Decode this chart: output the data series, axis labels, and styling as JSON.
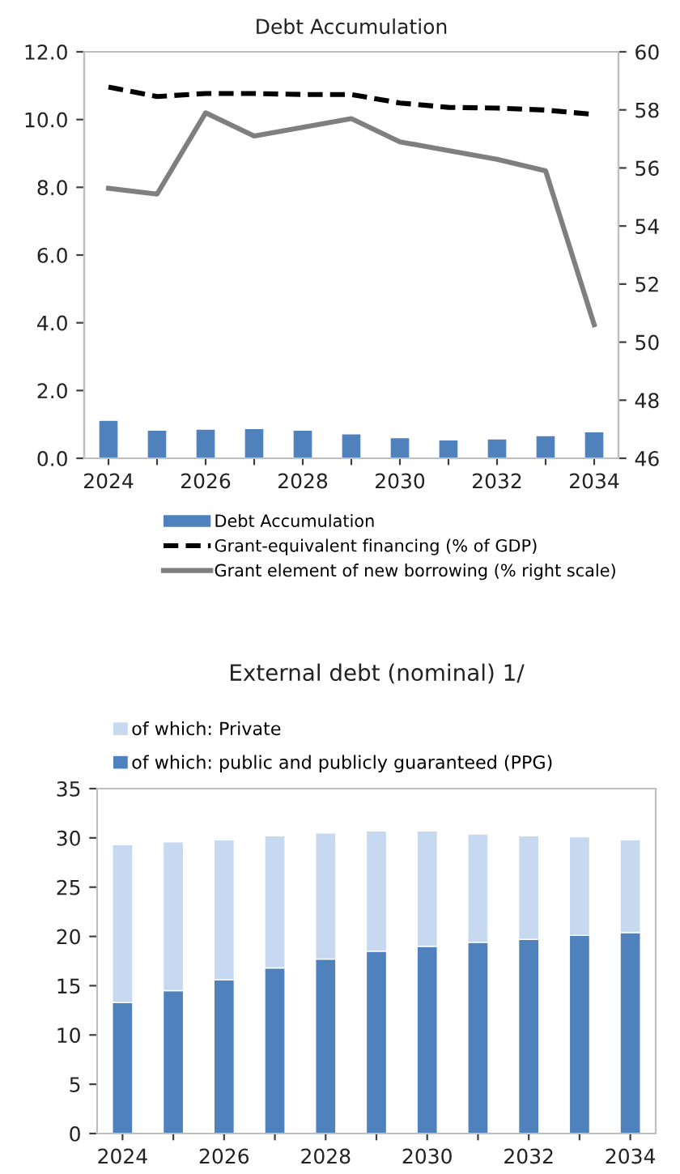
{
  "chart_data": [
    {
      "type": "bar",
      "title": "Debt Accumulation",
      "categories": [
        "2024",
        null,
        "2026",
        null,
        "2028",
        null,
        "2030",
        null,
        "2032",
        null,
        "2034"
      ],
      "series": [
        {
          "name": "Debt Accumulation",
          "type": "bar",
          "color": "#4f81bd",
          "values": [
            1.12,
            0.83,
            0.86,
            0.88,
            0.83,
            0.72,
            0.61,
            0.54,
            0.57,
            0.67,
            0.78
          ]
        },
        {
          "name": "Grant-equivalent financing (% of GDP)",
          "type": "line",
          "color": "#000000",
          "line_style": "dashed",
          "values": [
            10.96,
            10.68,
            10.77,
            10.77,
            10.74,
            10.74,
            10.49,
            10.36,
            10.34,
            10.28,
            10.15
          ]
        },
        {
          "name": "Grant element of new borrowing (% right scale)",
          "type": "line",
          "color": "#7f7f7f",
          "line_style": "solid",
          "axis": "y2",
          "values": [
            55.3,
            55.1,
            57.9,
            57.1,
            57.4,
            57.7,
            56.9,
            56.6,
            56.3,
            55.9,
            50.6
          ]
        }
      ],
      "ylim": [
        0,
        12
      ],
      "yticks": [
        {
          "value": 0,
          "label": "0.0"
        },
        {
          "value": 2,
          "label": "2.0"
        },
        {
          "value": 4,
          "label": "4.0"
        },
        {
          "value": 6,
          "label": "6.0"
        },
        {
          "value": 8,
          "label": "8.0"
        },
        {
          "value": 10,
          "label": "10.0"
        },
        {
          "value": 12,
          "label": "12.0"
        }
      ],
      "y2lim": [
        46,
        60
      ],
      "y2ticks": [
        46,
        48,
        50,
        52,
        54,
        56,
        58,
        60
      ],
      "legend": "bottom",
      "grid": false
    },
    {
      "type": "bar",
      "title": "External debt (nominal) 1/",
      "stacked": true,
      "categories": [
        "2024",
        null,
        "2026",
        null,
        "2028",
        null,
        "2030",
        null,
        "2032",
        null,
        "2034"
      ],
      "series": [
        {
          "name": "of which: public and publicly guaranteed (PPG)",
          "color": "#4f81bd",
          "values": [
            13.3,
            14.5,
            15.6,
            16.8,
            17.7,
            18.5,
            19.0,
            19.4,
            19.7,
            20.1,
            20.4
          ]
        },
        {
          "name": "of which: Private",
          "color": "#c6d9f0",
          "values": [
            16.0,
            15.1,
            14.2,
            13.4,
            12.8,
            12.2,
            11.7,
            11.0,
            10.5,
            10.0,
            9.4
          ]
        }
      ],
      "ylim": [
        0,
        35
      ],
      "yticks": [
        0,
        5,
        10,
        15,
        20,
        25,
        30,
        35
      ],
      "legend": "top",
      "grid": false
    }
  ]
}
